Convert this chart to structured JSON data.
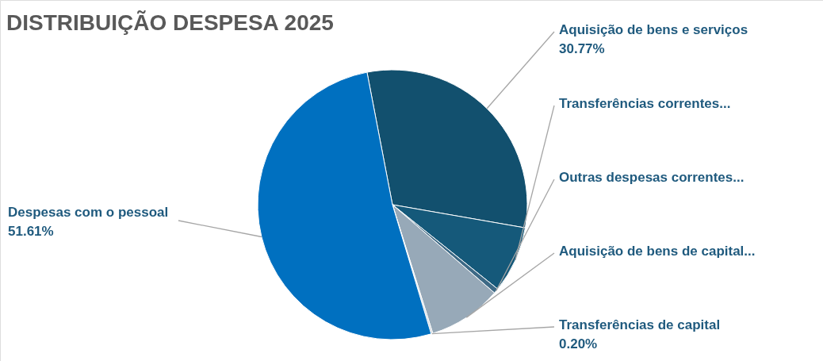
{
  "chart_data": {
    "type": "pie",
    "title": "DISTRIBUIÇÃO DESPESA 2025",
    "categories": [
      "Aquisição de bens e serviços",
      "Transferências correntes...",
      "Outras despesas correntes...",
      "Aquisição de bens de capital...",
      "Transferências de capital",
      "Despesas com o pessoal"
    ],
    "values": [
      30.77,
      8.0,
      0.6,
      8.82,
      0.2,
      51.61
    ],
    "value_labels": [
      "30.77%",
      null,
      null,
      null,
      "0.20%",
      "51.61%"
    ],
    "colors": [
      "#12506e",
      "#15597a",
      "#3e6a86",
      "#97a9b8",
      "#c9d1d8",
      "#0070c0"
    ]
  }
}
